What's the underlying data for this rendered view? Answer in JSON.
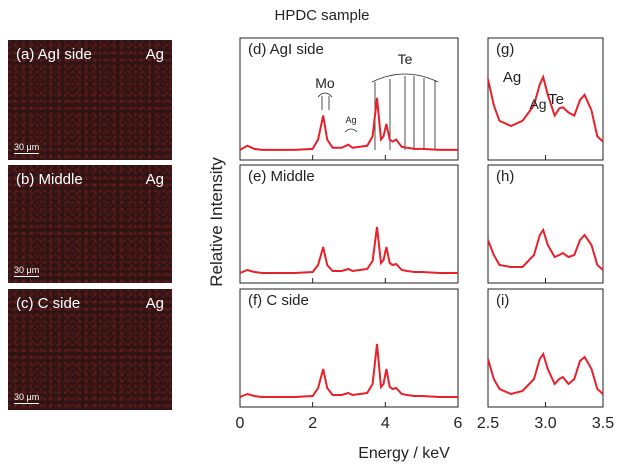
{
  "title": "HPDC sample",
  "x_label": "Energy / keV",
  "y_label": "Relative Intensity",
  "maps": [
    {
      "label": "(a) AgI side",
      "element": "Ag",
      "scale": "30 μm"
    },
    {
      "label": "(b) Middle",
      "element": "Ag",
      "scale": "30 μm"
    },
    {
      "label": "(c) C side",
      "element": "Ag",
      "scale": "30 μm"
    }
  ],
  "chart_data": [
    {
      "type": "line",
      "label": "(d) AgI side",
      "annotations": [
        "Mo",
        "Ag",
        "Te"
      ],
      "color": "#e8202a",
      "x": [
        0,
        0.2,
        0.4,
        0.6,
        1.0,
        1.5,
        2.0,
        2.15,
        2.29,
        2.4,
        2.55,
        2.8,
        2.98,
        3.1,
        3.3,
        3.5,
        3.65,
        3.77,
        3.88,
        3.95,
        4.03,
        4.12,
        4.2,
        4.3,
        4.45,
        4.6,
        4.8,
        5.0,
        5.5,
        6.0
      ],
      "values": [
        0.02,
        0.06,
        0.03,
        0.02,
        0.02,
        0.02,
        0.03,
        0.12,
        0.35,
        0.12,
        0.04,
        0.04,
        0.07,
        0.04,
        0.05,
        0.06,
        0.15,
        0.52,
        0.12,
        0.15,
        0.27,
        0.12,
        0.1,
        0.12,
        0.05,
        0.04,
        0.03,
        0.03,
        0.02,
        0.02
      ],
      "xlim": [
        0,
        6
      ],
      "xticks": [
        0,
        2,
        4,
        6
      ],
      "ylim": [
        0,
        1
      ]
    },
    {
      "type": "line",
      "label": "(e) Middle",
      "color": "#e8202a",
      "x": [
        0,
        0.2,
        0.4,
        0.6,
        1.0,
        1.5,
        2.0,
        2.15,
        2.29,
        2.4,
        2.55,
        2.8,
        2.98,
        3.1,
        3.3,
        3.5,
        3.65,
        3.77,
        3.88,
        3.95,
        4.03,
        4.12,
        4.2,
        4.3,
        4.45,
        4.6,
        4.8,
        5.0,
        5.5,
        6.0
      ],
      "values": [
        0.02,
        0.05,
        0.03,
        0.02,
        0.02,
        0.02,
        0.03,
        0.1,
        0.28,
        0.1,
        0.04,
        0.04,
        0.06,
        0.04,
        0.05,
        0.06,
        0.14,
        0.48,
        0.12,
        0.15,
        0.28,
        0.12,
        0.1,
        0.11,
        0.05,
        0.04,
        0.03,
        0.03,
        0.02,
        0.02
      ],
      "xlim": [
        0,
        6
      ],
      "xticks": [
        0,
        2,
        4,
        6
      ],
      "ylim": [
        0,
        1
      ]
    },
    {
      "type": "line",
      "label": "(f) C side",
      "color": "#e8202a",
      "x": [
        0,
        0.2,
        0.4,
        0.6,
        1.0,
        1.5,
        2.0,
        2.15,
        2.29,
        2.4,
        2.55,
        2.8,
        2.98,
        3.1,
        3.3,
        3.5,
        3.65,
        3.77,
        3.88,
        3.95,
        4.03,
        4.12,
        4.2,
        4.3,
        4.45,
        4.6,
        4.8,
        5.0,
        5.5,
        6.0
      ],
      "values": [
        0.02,
        0.05,
        0.03,
        0.02,
        0.02,
        0.02,
        0.03,
        0.11,
        0.3,
        0.11,
        0.04,
        0.04,
        0.06,
        0.04,
        0.05,
        0.06,
        0.15,
        0.55,
        0.12,
        0.15,
        0.3,
        0.12,
        0.1,
        0.11,
        0.05,
        0.04,
        0.03,
        0.03,
        0.02,
        0.02
      ],
      "xlim": [
        0,
        6
      ],
      "xticks": [
        0,
        2,
        4,
        6
      ],
      "ylim": [
        0,
        1
      ]
    },
    {
      "type": "line",
      "label": "(g)",
      "annotations": [
        "Ag",
        "Ag",
        "Te"
      ],
      "color": "#e8202a",
      "x": [
        2.5,
        2.55,
        2.6,
        2.7,
        2.8,
        2.9,
        2.95,
        2.98,
        3.02,
        3.08,
        3.12,
        3.15,
        3.2,
        3.25,
        3.3,
        3.34,
        3.4,
        3.45,
        3.5
      ],
      "values": [
        0.7,
        0.45,
        0.3,
        0.25,
        0.3,
        0.45,
        0.65,
        0.72,
        0.55,
        0.35,
        0.42,
        0.43,
        0.38,
        0.35,
        0.5,
        0.55,
        0.4,
        0.15,
        0.1
      ],
      "xlim": [
        2.5,
        3.5
      ],
      "xticks": [
        2.5,
        {
          "value": 3,
          "label": "3.0"
        },
        3.5
      ],
      "ylim": [
        0,
        1
      ]
    },
    {
      "type": "line",
      "label": "(h)",
      "color": "#e8202a",
      "x": [
        2.5,
        2.55,
        2.6,
        2.7,
        2.8,
        2.9,
        2.95,
        2.98,
        3.02,
        3.08,
        3.12,
        3.15,
        3.2,
        3.25,
        3.3,
        3.34,
        3.4,
        3.45,
        3.5
      ],
      "values": [
        0.35,
        0.2,
        0.1,
        0.08,
        0.08,
        0.2,
        0.4,
        0.45,
        0.3,
        0.18,
        0.2,
        0.22,
        0.18,
        0.2,
        0.35,
        0.4,
        0.3,
        0.1,
        0.05
      ],
      "xlim": [
        2.5,
        3.5
      ],
      "xticks": [
        2.5,
        {
          "value": 3,
          "label": "3.0"
        },
        3.5
      ],
      "ylim": [
        0,
        1
      ]
    },
    {
      "type": "line",
      "label": "(i)",
      "color": "#e8202a",
      "x": [
        2.5,
        2.55,
        2.6,
        2.7,
        2.8,
        2.9,
        2.95,
        2.98,
        3.02,
        3.08,
        3.12,
        3.15,
        3.2,
        3.25,
        3.3,
        3.34,
        3.4,
        3.45,
        3.5
      ],
      "values": [
        0.4,
        0.2,
        0.1,
        0.05,
        0.08,
        0.2,
        0.4,
        0.45,
        0.3,
        0.15,
        0.2,
        0.22,
        0.15,
        0.2,
        0.38,
        0.42,
        0.3,
        0.1,
        0.05
      ],
      "xlim": [
        2.5,
        3.5
      ],
      "xticks": [
        2.5,
        {
          "value": 3,
          "label": "3.0"
        },
        3.5
      ],
      "ylim": [
        0,
        1
      ]
    }
  ]
}
